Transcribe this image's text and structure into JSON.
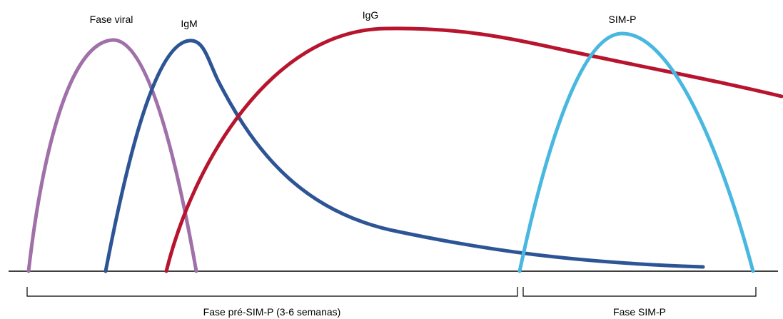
{
  "curves": {
    "viral": {
      "label": "Fase viral",
      "color": "#a070a8"
    },
    "igm": {
      "label": "IgM",
      "color": "#2d5595"
    },
    "igg": {
      "label": "IgG",
      "color": "#b7142e"
    },
    "simp": {
      "label": "SIM-P",
      "color": "#48b8e0"
    }
  },
  "phases": {
    "pre": {
      "label": "Fase pré-SIM-P (3-6 semanas)"
    },
    "simp": {
      "label": "Fase SIM-P"
    }
  }
}
